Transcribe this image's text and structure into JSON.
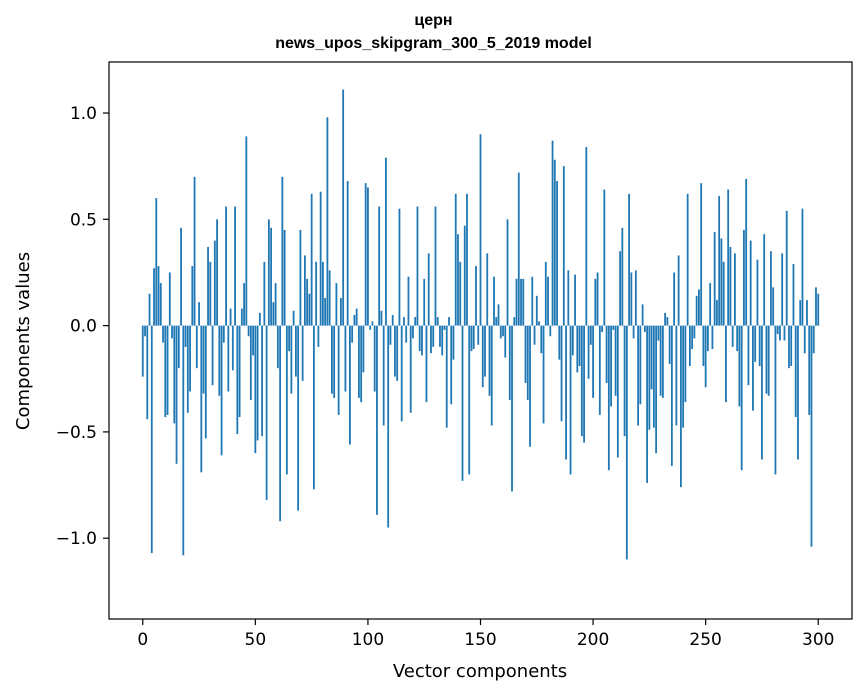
{
  "chart_data": {
    "type": "bar",
    "title": "церн",
    "subtitle": "news_upos_skipgram_300_5_2019 model",
    "xlabel": "Vector components",
    "ylabel": "Components values",
    "xlim": [
      -15,
      315
    ],
    "ylim": [
      -1.38,
      1.24
    ],
    "xticks": [
      0,
      50,
      100,
      150,
      200,
      250,
      300
    ],
    "xtick_labels": [
      "0",
      "50",
      "100",
      "150",
      "200",
      "250",
      "300"
    ],
    "yticks": [
      -1.0,
      -0.5,
      0.0,
      0.5,
      1.0
    ],
    "ytick_labels": [
      "−1.0",
      "−0.5",
      "0.0",
      "0.5",
      "1.0"
    ],
    "grid": false,
    "bar_color": "#1f77b4",
    "x_start": 0,
    "values": [
      -0.24,
      -0.05,
      -0.44,
      0.15,
      -1.07,
      0.27,
      0.6,
      0.28,
      0.2,
      -0.08,
      -0.43,
      -0.42,
      0.25,
      -0.06,
      -0.46,
      -0.65,
      -0.2,
      0.46,
      -1.08,
      -0.1,
      -0.41,
      -0.31,
      0.28,
      0.7,
      -0.2,
      0.11,
      -0.69,
      -0.32,
      -0.53,
      0.37,
      0.3,
      -0.28,
      0.4,
      0.5,
      -0.33,
      -0.61,
      -0.08,
      0.56,
      -0.31,
      0.08,
      -0.21,
      0.56,
      -0.51,
      -0.43,
      0.08,
      0.2,
      0.89,
      -0.05,
      -0.35,
      -0.14,
      -0.6,
      -0.54,
      0.06,
      -0.52,
      0.3,
      -0.82,
      0.5,
      0.46,
      0.11,
      0.2,
      -0.2,
      -0.92,
      0.7,
      0.45,
      -0.7,
      -0.12,
      -0.32,
      0.07,
      -0.24,
      -0.87,
      0.45,
      -0.26,
      0.33,
      0.22,
      0.15,
      0.62,
      -0.77,
      0.3,
      -0.1,
      0.63,
      0.3,
      0.13,
      0.98,
      0.26,
      -0.32,
      -0.34,
      0.2,
      -0.42,
      0.13,
      1.11,
      -0.31,
      0.68,
      -0.56,
      -0.08,
      0.05,
      0.08,
      -0.34,
      -0.36,
      -0.22,
      0.67,
      0.65,
      -0.02,
      0.02,
      -0.31,
      -0.89,
      0.56,
      0.07,
      -0.47,
      0.79,
      -0.95,
      -0.09,
      0.05,
      -0.24,
      -0.26,
      0.55,
      -0.45,
      0.04,
      -0.08,
      0.23,
      -0.41,
      -0.06,
      0.04,
      0.56,
      -0.12,
      -0.14,
      0.22,
      -0.36,
      0.34,
      -0.13,
      -0.1,
      0.56,
      0.04,
      -0.1,
      -0.14,
      -0.02,
      -0.48,
      0.04,
      -0.37,
      -0.16,
      0.62,
      0.43,
      0.3,
      -0.73,
      0.47,
      0.62,
      -0.7,
      -0.12,
      -0.11,
      0.28,
      -0.09,
      0.9,
      -0.29,
      -0.24,
      0.34,
      -0.33,
      -0.47,
      0.23,
      0.04,
      0.1,
      -0.06,
      -0.05,
      -0.15,
      0.5,
      -0.35,
      -0.78,
      0.04,
      0.22,
      0.72,
      0.22,
      0.22,
      -0.27,
      -0.35,
      -0.57,
      0.23,
      -0.09,
      0.14,
      0.02,
      -0.13,
      -0.46,
      0.3,
      0.23,
      -0.05,
      0.87,
      0.78,
      0.68,
      -0.16,
      -0.45,
      0.75,
      -0.63,
      0.26,
      -0.7,
      -0.14,
      0.24,
      -0.22,
      -0.19,
      -0.52,
      -0.55,
      0.84,
      -0.25,
      -0.09,
      -0.34,
      0.22,
      0.25,
      -0.42,
      -0.03,
      0.64,
      -0.27,
      -0.68,
      -0.38,
      -0.02,
      -0.33,
      -0.62,
      0.35,
      0.46,
      -0.52,
      -1.1,
      0.62,
      0.25,
      -0.06,
      0.26,
      -0.47,
      -0.37,
      0.1,
      -0.03,
      -0.74,
      -0.49,
      -0.3,
      -0.48,
      -0.6,
      -0.07,
      -0.33,
      -0.34,
      0.06,
      0.04,
      -0.18,
      -0.66,
      0.25,
      -0.47,
      0.33,
      -0.76,
      -0.48,
      -0.36,
      0.62,
      -0.19,
      -0.11,
      -0.06,
      0.14,
      0.17,
      0.67,
      -0.19,
      -0.29,
      -0.12,
      0.2,
      -0.11,
      0.44,
      0.12,
      0.61,
      0.41,
      0.3,
      -0.36,
      0.64,
      0.37,
      -0.1,
      0.34,
      -0.12,
      -0.38,
      -0.68,
      0.45,
      0.69,
      -0.28,
      0.4,
      -0.4,
      -0.17,
      0.31,
      -0.19,
      -0.63,
      0.43,
      -0.32,
      -0.33,
      0.35,
      0.18,
      -0.7,
      -0.04,
      -0.07,
      0.34,
      -0.07,
      0.54,
      -0.2,
      -0.19,
      0.29,
      -0.43,
      -0.63,
      0.12,
      0.55,
      -0.13,
      0.12,
      -0.42,
      -1.04,
      -0.13,
      0.18,
      0.15
    ]
  }
}
